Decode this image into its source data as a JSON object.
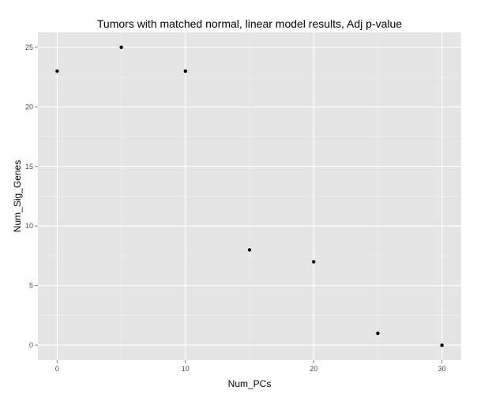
{
  "chart_data": {
    "type": "scatter",
    "title": "Tumors with matched normal, linear model results, Adj p-value",
    "xlabel": "Num_PCs",
    "ylabel": "Num_Sig_Genes",
    "x": [
      0,
      5,
      10,
      15,
      20,
      25,
      30
    ],
    "y": [
      23,
      25,
      23,
      8,
      7,
      1,
      0
    ],
    "xlim": [
      -1.5,
      31.5
    ],
    "ylim": [
      -1.25,
      26.25
    ],
    "x_ticks": [
      0,
      10,
      20,
      30
    ],
    "x_tick_labels": [
      "0",
      "10",
      "20",
      "30"
    ],
    "y_ticks": [
      0,
      5,
      10,
      15,
      20,
      25
    ],
    "y_tick_labels": [
      "0",
      "5",
      "10",
      "15",
      "20",
      "25"
    ],
    "grid": true,
    "background_color": "#e5e5e5",
    "grid_color": "#ffffff",
    "point_color": "#000000"
  }
}
